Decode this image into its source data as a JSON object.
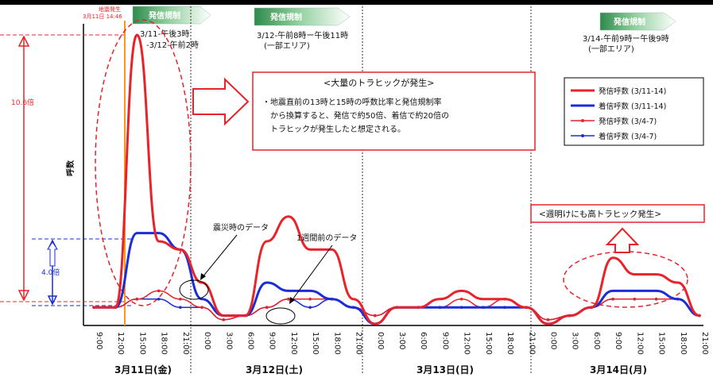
{
  "chart_data": {
    "type": "line",
    "ylabel": "呼数",
    "x": [
      "9:00",
      "12:00",
      "15:00",
      "18:00",
      "21:00",
      "0:00",
      "3:00",
      "6:00",
      "9:00",
      "12:00",
      "15:00",
      "18:00",
      "21:00",
      "0:00",
      "3:00",
      "6:00",
      "9:00",
      "12:00",
      "15:00",
      "18:00",
      "21:00",
      "0:00",
      "3:00",
      "6:00",
      "9:00",
      "12:00",
      "15:00",
      "18:00",
      "21:00"
    ],
    "tick_labels": [
      "9:00",
      "12:00",
      "15:00",
      "18:00",
      "21:00",
      "0:00",
      "3:00",
      "6:00",
      "9:00",
      "12:00",
      "15:00",
      "18:00",
      "21:00",
      "0:00",
      "3:00",
      "6:00",
      "9:00",
      "12:00",
      "15:00",
      "18:00",
      "21:00",
      "0:00",
      "3:00",
      "6:00",
      "9:00",
      "12:00",
      "15:00",
      "18:00",
      "21:00"
    ],
    "day_labels": [
      "3月11日(金)",
      "3月12日(土)",
      "3月13日(日)",
      "3月14日(月)"
    ],
    "series": [
      {
        "name": "発信呼数 (3/11-14)",
        "color": "#e8232a",
        "width": 3,
        "marker": false,
        "values": [
          2,
          2,
          35,
          10,
          9,
          5,
          1,
          1,
          10,
          13,
          9,
          9,
          3,
          0,
          2,
          2,
          3,
          4,
          3,
          3,
          2,
          0,
          1,
          2,
          8,
          6,
          6,
          5,
          1
        ]
      },
      {
        "name": "着信呼数 (3/11-14)",
        "color": "#1b2dd6",
        "width": 3,
        "marker": false,
        "values": [
          2,
          2,
          11,
          11,
          9,
          3,
          1,
          1,
          5,
          4,
          4,
          3,
          2,
          0,
          2,
          2,
          2,
          2,
          2,
          2,
          2,
          0,
          1,
          2,
          4,
          4,
          4,
          3,
          1
        ]
      },
      {
        "name": "発信呼数 (3/4-7)",
        "color": "#e8232a",
        "width": 1.5,
        "marker": true,
        "values": [
          2,
          2,
          3,
          4,
          3,
          2,
          0.5,
          1,
          2,
          3,
          3,
          3,
          2,
          1,
          2,
          2,
          2,
          3,
          2,
          3,
          2,
          0.5,
          1,
          2,
          3,
          3,
          3,
          3,
          1
        ]
      },
      {
        "name": "着信呼数 (3/4-7)",
        "color": "#1b2dd6",
        "width": 1.5,
        "marker": true,
        "values": [
          2,
          2,
          3,
          3,
          2,
          2,
          0.5,
          1,
          2,
          3,
          2,
          3,
          2,
          1,
          2,
          2,
          2,
          2,
          2,
          2,
          2,
          0.5,
          1,
          2,
          3,
          3,
          3,
          3,
          1
        ]
      }
    ]
  },
  "banners": [
    {
      "title": "発信規制",
      "detail": [
        "3/11-午後3時",
        "-3/12-午前2時"
      ]
    },
    {
      "title": "発信規制",
      "detail": [
        "3/12-午前8時ー午後11時",
        "(一部エリア)"
      ]
    },
    {
      "title": "発信規制",
      "detail": [
        "3/14-午前9時ー午後9時",
        "(一部エリア)"
      ]
    }
  ],
  "quake": {
    "line1": "地震発生",
    "line2": "3月11日 14:46"
  },
  "ratio_top": "10.6倍",
  "ratio_bottom": "4.0倍",
  "traffic_box": {
    "title": "<大量のトラヒックが発生>",
    "lines": [
      "・地震直前の13時と15時の呼数比率と発信規制率",
      "から換算すると、発信で約50倍、着信で約20倍の",
      "トラヒックが発生したと想定される。"
    ]
  },
  "morning_box": "<週明けにも高トラヒック発生>",
  "annot_quake": "震災時のデータ",
  "annot_week": "1週間前のデータ",
  "legend_items": [
    "発信呼数 (3/11-14)",
    "着信呼数 (3/11-14)",
    "発信呼数 (3/4-7)",
    "着信呼数 (3/4-7)"
  ]
}
